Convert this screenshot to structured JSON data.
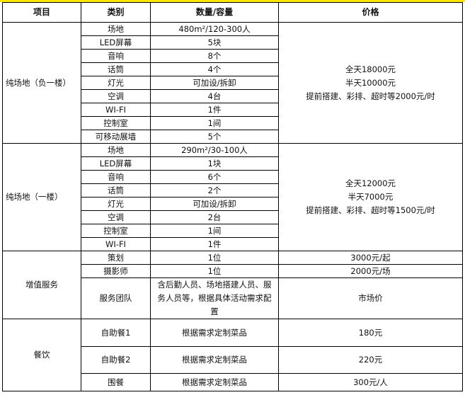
{
  "headers": [
    "项目",
    "类别",
    "数量/容量",
    "价格"
  ],
  "section1": {
    "name": "纯场地（负一楼）",
    "rows": [
      [
        "场地",
        "480m²/120-300人"
      ],
      [
        "LED屏幕",
        "5块"
      ],
      [
        "音响",
        "8个"
      ],
      [
        "话筒",
        "4个"
      ],
      [
        "灯光",
        "可加设/拆卸"
      ],
      [
        "空调",
        "4台"
      ],
      [
        "WI-FI",
        "1件"
      ],
      [
        "控制室",
        "1间"
      ],
      [
        "可移动展墙",
        "5个"
      ]
    ],
    "price": [
      "全天18000元",
      "半天10000元",
      "提前搭建、彩排、超时等2000元/时"
    ]
  },
  "section2": {
    "name": "纯场地（一楼）",
    "rows": [
      [
        "场地",
        "290m²/30-100人"
      ],
      [
        "LED屏幕",
        "1块"
      ],
      [
        "音响",
        "6个"
      ],
      [
        "话筒",
        "2个"
      ],
      [
        "灯光",
        "可加设/拆卸"
      ],
      [
        "空调",
        "2台"
      ],
      [
        "控制室",
        "1间"
      ],
      [
        "WI-FI",
        "1件"
      ]
    ],
    "price": [
      "全天12000元",
      "半天7000元",
      "提前搭建、彩排、超时等1500元/时"
    ]
  },
  "section3": {
    "name": "增值服务",
    "rows": [
      [
        "策划",
        "1位",
        "3000元/起"
      ],
      [
        "摄影师",
        "1位",
        "2000元/场"
      ],
      [
        "服务团队",
        "含后勤人员、场地搭建人员、服务人员等，根据具体活动需求配置",
        "市场价"
      ]
    ]
  },
  "section4": {
    "name": "餐饮",
    "rows": [
      [
        "自助餐1",
        "根据需求定制菜品",
        "180元"
      ],
      [
        "自助餐2",
        "根据需求定制菜品",
        "220元"
      ],
      [
        "围餐",
        "根据需求定制菜品",
        "300元/人"
      ]
    ]
  },
  "colors": {
    "top_border": "#ffe600",
    "grid": "#000000"
  }
}
